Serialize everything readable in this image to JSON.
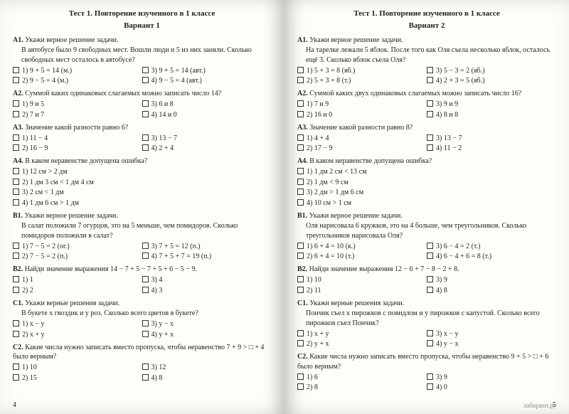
{
  "left": {
    "title": "Тест 1. Повторение изученного в 1 классе",
    "variant": "Вариант 1",
    "page_num": "4",
    "questions": [
      {
        "label": "А1.",
        "text": "Укажи верное решение задачи.",
        "body": "В автобусе было 9 свободных мест. Вошли люди и 5 из них заняли. Сколько свободных мест осталось в автобусе?",
        "options": [
          "1) 9 + 5 = 14 (м.)",
          "3) 9 + 5 = 14 (авт.)",
          "2) 9 − 5 = 4 (м.)",
          "4) 9 − 5 = 4 (авт.)"
        ]
      },
      {
        "label": "А2.",
        "text": "Суммой каких одинаковых слагаемых можно записать число 14?",
        "options": [
          "1) 9 и 5",
          "3) 6 и 8",
          "2) 7 и 7",
          "4) 14 и 0"
        ]
      },
      {
        "label": "А3.",
        "text": "Значение какой разности равно 6?",
        "options": [
          "1) 11 − 4",
          "3) 13 − 7",
          "2) 16 − 9",
          "4) 2 + 4"
        ]
      },
      {
        "label": "А4.",
        "text": "В каком неравенстве допущена ошибка?",
        "options": [
          "1) 12 см > 2 дм",
          "",
          "2) 1 дм 3 см < 1 дм 4 см",
          "",
          "3) 2 см < 1 дм",
          "",
          "4) 1 дм 6 см > 1 дм",
          ""
        ]
      },
      {
        "label": "В1.",
        "text": "Укажи верное решение задачи.",
        "body": "В салат положили 7 огурцов, это на 5 меньше, чем помидоров. Сколько помидоров положили в салат?",
        "options": [
          "1) 7 − 5 = 2 (ог.)",
          "3) 7 + 5 = 12 (п.)",
          "2) 7 − 5 = 2 (п.)",
          "4) 7 + 5 + 7 = 19 (п.)"
        ]
      },
      {
        "label": "В2.",
        "text": "Найди значение выражения 14 − 7 + 5 − 7 + 5 + 6 − 5 − 9.",
        "options": [
          "1) 1",
          "3) 4",
          "2) 2",
          "4) 3"
        ]
      },
      {
        "label": "С1.",
        "text": "Укажи верные решения задачи.",
        "body": "В букете x гвоздик и y роз. Сколько всего цветов в букете?",
        "options": [
          "1) x − y",
          "3) y − x",
          "2) x + y",
          "4) y + x"
        ]
      },
      {
        "label": "С2.",
        "text": "Какие числа нужно записать вместо пропуска, чтобы неравенство 7 + 9 > □ + 4 было верным?",
        "options": [
          "1) 10",
          "3) 12",
          "2) 15",
          "4) 8"
        ]
      }
    ]
  },
  "right": {
    "title": "Тест 1. Повторение изученного в 1 классе",
    "variant": "Вариант 2",
    "page_num": "5",
    "watermark": "лабиринт.ру",
    "questions": [
      {
        "label": "А1.",
        "text": "Укажи верное решение задачи.",
        "body": "На тарелке лежали 5 яблок. После того как Оля съела несколько яблок, осталось ещё 3. Сколько яблок съела Оля?",
        "options": [
          "1) 5 + 3 = 8 (яб.)",
          "3) 5 − 3 = 2 (яб.)",
          "2) 5 + 3 = 8 (т.)",
          "4) 2 + 3 = 5 (яб.)"
        ]
      },
      {
        "label": "А2.",
        "text": "Суммой каких двух одинаковых слагаемых можно записать число 16?",
        "options": [
          "1) 7 и 9",
          "3) 9 и 9",
          "2) 16 и 0",
          "4) 8 и 8"
        ]
      },
      {
        "label": "А3.",
        "text": "Значение какой разности равно 8?",
        "options": [
          "1) 4 + 4",
          "3) 13 − 7",
          "2) 17 − 9",
          "4) 11 − 2"
        ]
      },
      {
        "label": "А4.",
        "text": "В каком неравенстве допущена ошибка?",
        "options": [
          "1) 1 дм 2 см < 13 см",
          "",
          "2) 1 дм < 9 см",
          "",
          "3) 2 дм > 1 дм 6 см",
          "",
          "4) 10 см > 1 см",
          ""
        ]
      },
      {
        "label": "В1.",
        "text": "Укажи верное решение задачи.",
        "body": "Оля нарисовала 6 кружков, это на 4 больше, чем треугольников. Сколько треугольников нарисовала Оля?",
        "options": [
          "1) 6 + 4 = 10 (к.)",
          "3) 6 − 4 = 2 (т.)",
          "2) 6 + 4 = 10 (т.)",
          "4) 6 − 4 + 6 = 8 (т.)"
        ]
      },
      {
        "label": "В2.",
        "text": "Найди значение выражения 12 − 6 + 7 − 8 − 2 + 8.",
        "options": [
          "1) 10",
          "3) 9",
          "2) 11",
          "4) 8"
        ]
      },
      {
        "label": "С1.",
        "text": "Укажи верные решения задачи.",
        "body": "Пончик съел x пирожков с повидлом и y пирожков с капустой. Сколько всего пирожков съел Пончик?",
        "options": [
          "1) x + y",
          "3) x − y",
          "2) y + x",
          "4) y − x"
        ]
      },
      {
        "label": "С2.",
        "text": "Какие числа нужно записать вместо пропуска, чтобы неравенство 9 + 5 > □ + 6 было верным?",
        "options": [
          "1) 6",
          "3) 9",
          "2) 8",
          "4) 0"
        ]
      }
    ]
  }
}
